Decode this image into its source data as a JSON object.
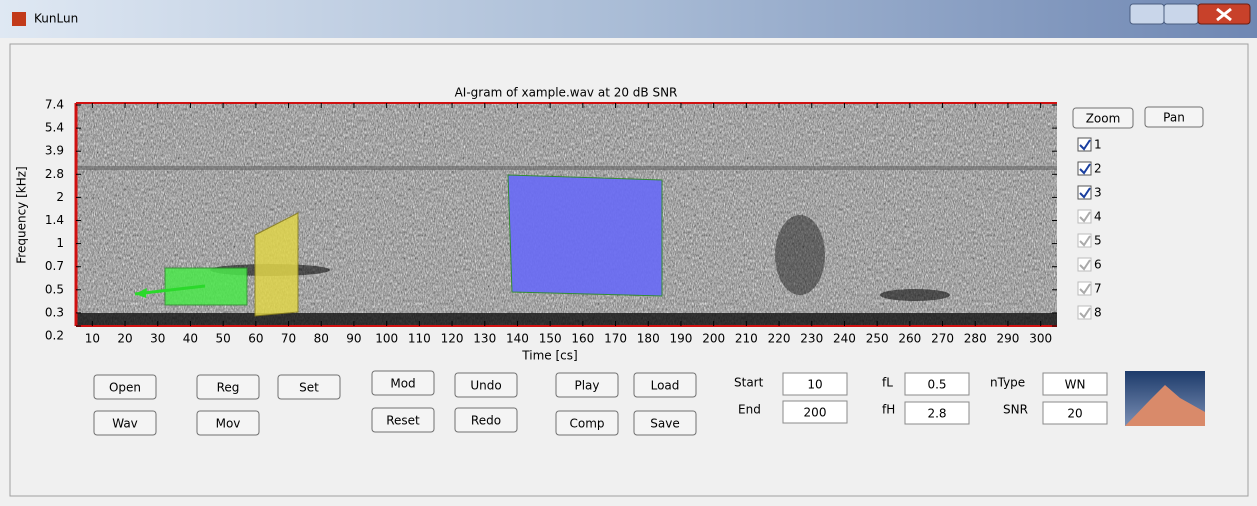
{
  "window": {
    "title": "KunLun"
  },
  "plot": {
    "title": "AI-gram of xample.wav at 20 dB SNR",
    "xlabel": "Time [cs]",
    "ylabel": "Frequency [kHz]",
    "xlim": [
      5,
      305
    ],
    "xticks": [
      10,
      20,
      30,
      40,
      50,
      60,
      70,
      80,
      90,
      100,
      110,
      120,
      130,
      140,
      150,
      160,
      170,
      180,
      190,
      200,
      210,
      220,
      230,
      240,
      250,
      260,
      270,
      280,
      290,
      300
    ],
    "yticks": [
      7.4,
      5.4,
      3.9,
      2.8,
      2,
      1.4,
      1,
      0.7,
      0.5,
      0.3,
      0.2
    ]
  },
  "view_buttons": [
    "Zoom",
    "Pan"
  ],
  "channels": [
    {
      "label": 1,
      "checked": true,
      "enabled": true
    },
    {
      "label": 2,
      "checked": true,
      "enabled": true
    },
    {
      "label": 3,
      "checked": true,
      "enabled": true
    },
    {
      "label": 4,
      "checked": true,
      "enabled": false
    },
    {
      "label": 5,
      "checked": true,
      "enabled": false
    },
    {
      "label": 6,
      "checked": true,
      "enabled": false
    },
    {
      "label": 7,
      "checked": true,
      "enabled": false
    },
    {
      "label": 8,
      "checked": true,
      "enabled": false
    }
  ],
  "buttons": [
    "Open",
    "Wav",
    "Reg",
    "Mov",
    "Set",
    "Mod",
    "Reset",
    "Undo",
    "Redo",
    "Play",
    "Comp",
    "Load",
    "Save"
  ],
  "fields": [
    {
      "label": "Start",
      "value": 10
    },
    {
      "label": "End",
      "value": 200
    },
    {
      "label": "fL",
      "value": 0.5
    },
    {
      "label": "fH",
      "value": 2.8
    },
    {
      "label": "nType",
      "value": "WN"
    },
    {
      "label": "SNR",
      "value": 20
    }
  ]
}
